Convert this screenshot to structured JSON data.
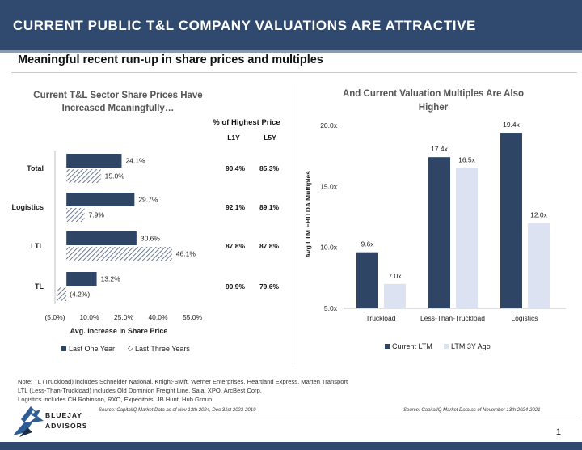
{
  "header": {
    "title": "CURRENT PUBLIC T&L COMPANY VALUATIONS ARE ATTRACTIVE"
  },
  "subtitle": "Meaningful recent run-up in share prices and multiples",
  "chart_data": [
    {
      "type": "bar",
      "orientation": "horizontal",
      "title": "Current T&L Sector Share Prices Have Increased Meaningfully…",
      "title_lines": [
        "Current T&L Sector Share Prices Have",
        "Increased Meaningfully…"
      ],
      "categories": [
        "Total",
        "Logistics",
        "LTL",
        "TL"
      ],
      "series": [
        {
          "name": "Last One Year",
          "values": [
            24.1,
            29.7,
            30.6,
            13.2
          ],
          "labels": [
            "24.1%",
            "29.7%",
            "30.6%",
            "13.2%"
          ]
        },
        {
          "name": "Last Three Years",
          "values": [
            15.0,
            7.9,
            46.1,
            -4.2
          ],
          "labels": [
            "15.0%",
            "7.9%",
            "46.1%",
            "(4.2%)"
          ]
        }
      ],
      "xlabel": "Avg. Increase in Share Price",
      "xlim": [
        -5,
        55
      ],
      "xticks": [
        -5,
        10,
        25,
        40,
        55
      ],
      "xtick_labels": [
        "(5.0%)",
        "10.0%",
        "25.0%",
        "40.0%",
        "55.0%"
      ],
      "table": {
        "title": "% of Highest Price",
        "columns": [
          "L1Y",
          "L5Y"
        ],
        "rows": [
          [
            "90.4%",
            "85.3%"
          ],
          [
            "92.1%",
            "89.1%"
          ],
          [
            "87.8%",
            "87.8%"
          ],
          [
            "90.9%",
            "79.6%"
          ]
        ]
      },
      "legend": "bottom"
    },
    {
      "type": "bar",
      "title": "And Current Valuation Multiples Are Also Higher",
      "title_lines": [
        "And Current Valuation Multiples Are Also",
        "Higher"
      ],
      "categories": [
        "Truckload",
        "Less-Than-Truckload",
        "Logistics"
      ],
      "series": [
        {
          "name": "Current LTM",
          "values": [
            9.6,
            17.4,
            19.4
          ],
          "labels": [
            "9.6x",
            "17.4x",
            "19.4x"
          ]
        },
        {
          "name": "LTM 3Y Ago",
          "values": [
            7.0,
            16.5,
            12.0
          ],
          "labels": [
            "7.0x",
            "16.5x",
            "12.0x"
          ]
        }
      ],
      "ylabel": "Avg LTM EBITDA Multiples",
      "ylim": [
        5,
        20
      ],
      "yticks": [
        5,
        10,
        15,
        20
      ],
      "ytick_labels": [
        "5.0x",
        "10.0x",
        "15.0x",
        "20.0x"
      ],
      "legend": "bottom"
    }
  ],
  "colors": {
    "header": "#2f4a6e",
    "dark_series": "#2e4566",
    "light_series": "#dce2f1"
  },
  "notes": [
    "Note: TL (Truckload) includes Schneider National, Knight-Swift, Werner Enterprises, Heartland Express, Marten Transport",
    "LTL (Less-Than-Truckload) includes Old Dominion Freight Line, Saia, XPO, ArcBest Corp.",
    "Logistics includes CH Robinson, RXO, Expeditors, JB Hunt, Hub Group"
  ],
  "sources": {
    "left": "Source: CapitalIQ Market Data as of Nov 13th 2024, Dec 31st 2023-2019",
    "right": "Source: CapitalIQ Market Data as of November 13th 2024-2021"
  },
  "logo": {
    "line1": "BLUEJAY",
    "line2": "ADVISORS"
  },
  "page_number": "1"
}
